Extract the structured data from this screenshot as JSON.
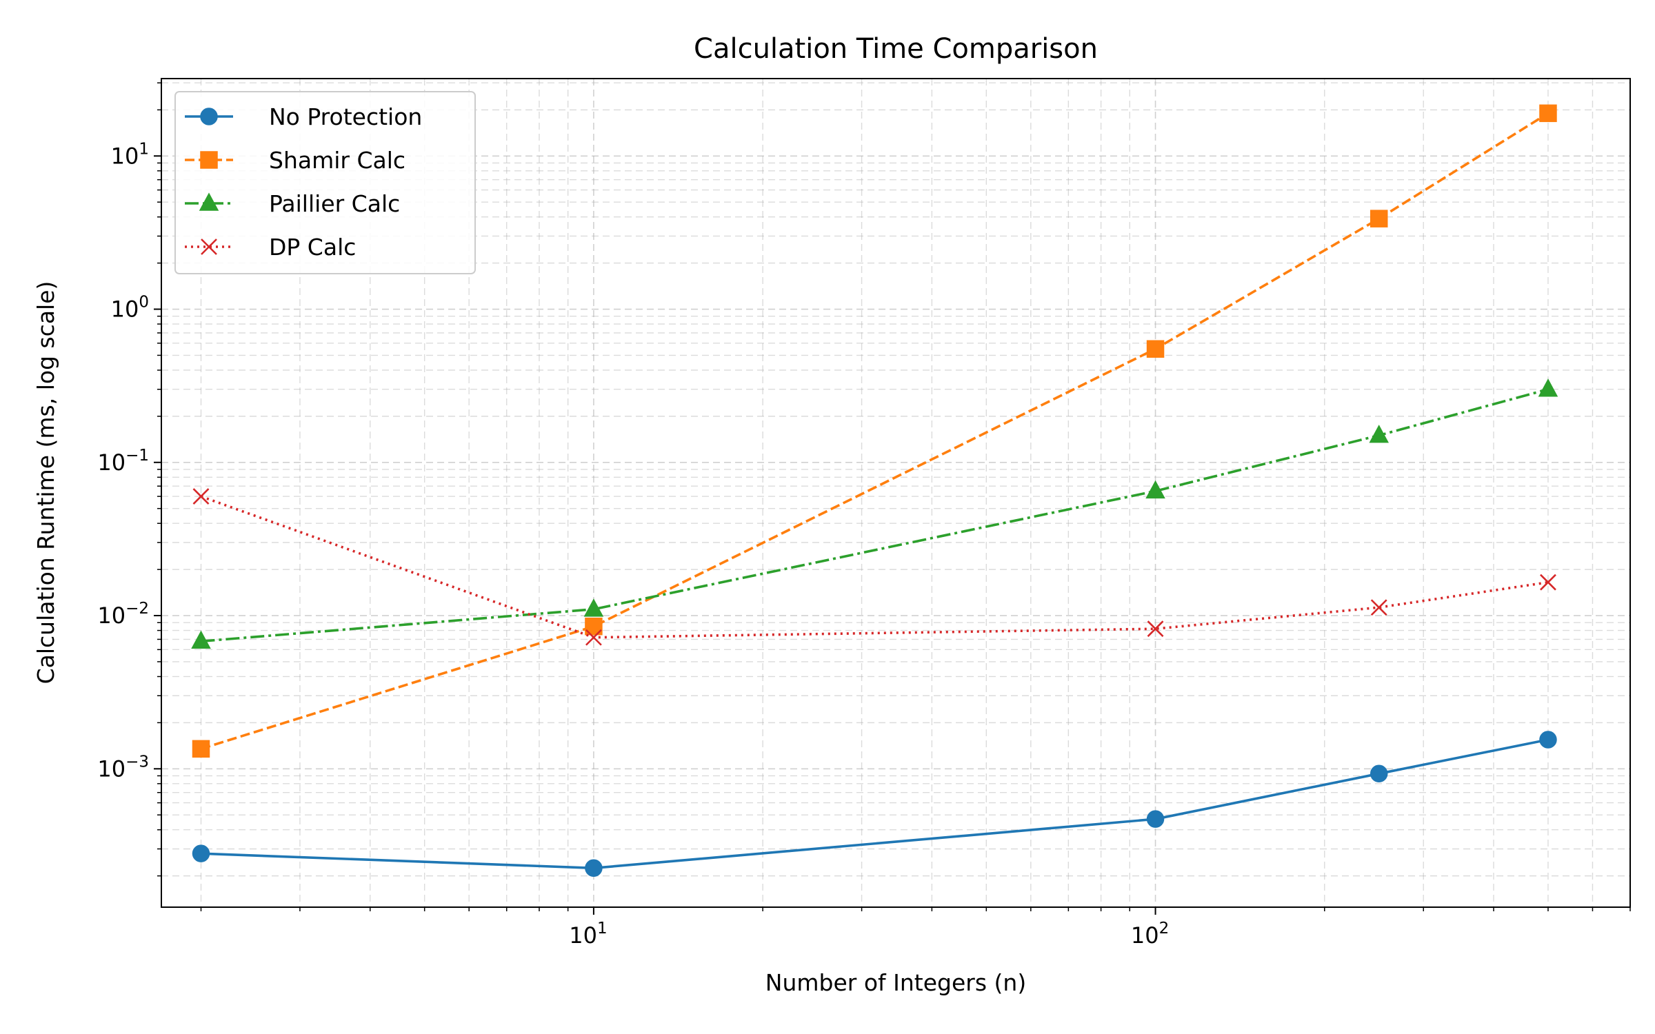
{
  "chart_data": {
    "type": "line",
    "title": "Calculation Time Comparison",
    "xlabel": "Number of Integers (n)",
    "ylabel": "Calculation Runtime (ms, log scale)",
    "xscale": "log",
    "yscale": "log",
    "xlim": [
      1.7,
      700
    ],
    "ylim": [
      0.000125,
      32
    ],
    "grid": true,
    "legend_position": "top-left",
    "x_tick_labels": [
      {
        "value": 10,
        "base": "10",
        "exp": "1"
      },
      {
        "value": 100,
        "base": "10",
        "exp": "2"
      }
    ],
    "y_tick_labels": [
      {
        "value": 0.001,
        "base": "10",
        "exp": "−3"
      },
      {
        "value": 0.01,
        "base": "10",
        "exp": "−2"
      },
      {
        "value": 0.1,
        "base": "10",
        "exp": "−1"
      },
      {
        "value": 1,
        "base": "10",
        "exp": "0"
      },
      {
        "value": 10,
        "base": "10",
        "exp": "1"
      }
    ],
    "x": [
      2,
      10,
      100,
      250,
      500
    ],
    "series": [
      {
        "name": "No Protection",
        "values": [
          0.00028,
          0.000225,
          0.00047,
          0.00093,
          0.00155
        ],
        "color": "#1f77b4",
        "linestyle": "solid",
        "marker": "circle"
      },
      {
        "name": "Shamir Calc",
        "values": [
          0.00135,
          0.0085,
          0.55,
          3.9,
          19.0
        ],
        "color": "#ff7f0e",
        "linestyle": "dashed",
        "marker": "square"
      },
      {
        "name": "Paillier Calc",
        "values": [
          0.0068,
          0.011,
          0.065,
          0.15,
          0.3
        ],
        "color": "#2ca02c",
        "linestyle": "dashdot",
        "marker": "triangle"
      },
      {
        "name": "DP Calc",
        "values": [
          0.06,
          0.0072,
          0.0082,
          0.0113,
          0.0165
        ],
        "color": "#d62728",
        "linestyle": "dotted",
        "marker": "x"
      }
    ]
  }
}
